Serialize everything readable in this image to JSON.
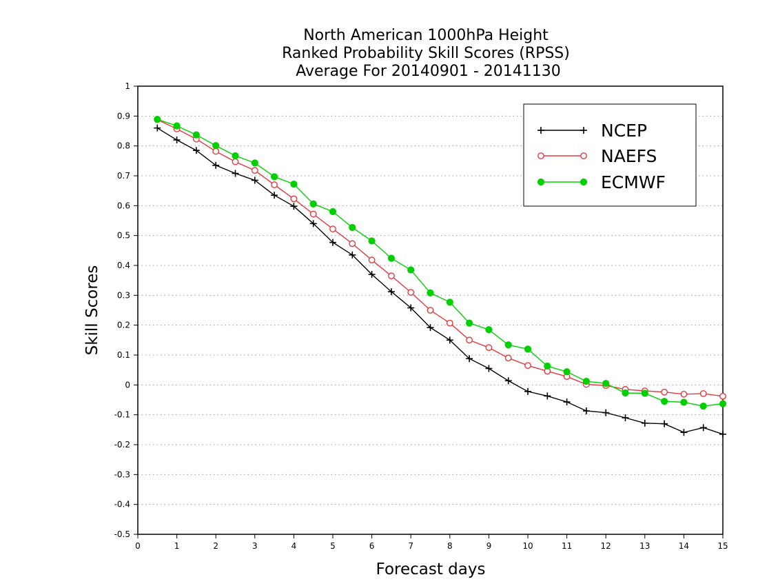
{
  "chart_data": {
    "type": "line",
    "title_lines": [
      "North American 1000hPa Height",
      "Ranked Probability Skill Scores (RPSS)",
      " Average For 20140901 - 20141130"
    ],
    "xlabel": "Forecast days",
    "ylabel": "Skill Scores",
    "xlim": [
      0,
      15
    ],
    "ylim": [
      -0.5,
      1
    ],
    "x_ticks": [
      0,
      1,
      2,
      3,
      4,
      5,
      6,
      7,
      8,
      9,
      10,
      11,
      12,
      13,
      14,
      15
    ],
    "x_tick_labels": [
      "0",
      "1",
      "2",
      "3",
      "4",
      "5",
      "6",
      "7",
      "8",
      "9",
      "10",
      "11",
      "12",
      "13",
      "14",
      "15"
    ],
    "y_ticks": [
      -0.5,
      -0.4,
      -0.3,
      -0.2,
      -0.1,
      0,
      0.1,
      0.2,
      0.3,
      0.4,
      0.5,
      0.6,
      0.7,
      0.8,
      0.9,
      1
    ],
    "y_tick_labels": [
      "-0.5",
      "-0.4",
      "-0.3",
      "-0.2",
      "-0.1",
      "0",
      "0.1",
      "0.2",
      "0.3",
      "0.4",
      "0.5",
      "0.6",
      "0.7",
      "0.8",
      "0.9",
      "1"
    ],
    "grid": "horizontal dotted",
    "legend_position": "top-right",
    "x": [
      0.5,
      1,
      1.5,
      2,
      2.5,
      3,
      3.5,
      4,
      4.5,
      5,
      5.5,
      6,
      6.5,
      7,
      7.5,
      8,
      8.5,
      9,
      9.5,
      10,
      10.5,
      11,
      11.5,
      12,
      12.5,
      13,
      13.5,
      14,
      14.5,
      15
    ],
    "series": [
      {
        "name": "NCEP",
        "color": "#000000",
        "marker": "plus",
        "values": [
          0.86,
          0.82,
          0.785,
          0.735,
          0.708,
          0.685,
          0.635,
          0.598,
          0.54,
          0.477,
          0.435,
          0.37,
          0.312,
          0.258,
          0.192,
          0.15,
          0.088,
          0.055,
          0.014,
          -0.022,
          -0.037,
          -0.057,
          -0.087,
          -0.093,
          -0.11,
          -0.128,
          -0.13,
          -0.159,
          -0.143,
          -0.165
        ]
      },
      {
        "name": "NAEFS",
        "color": "#e8383d",
        "marker": "open-circle",
        "values": [
          0.888,
          0.857,
          0.823,
          0.782,
          0.747,
          0.718,
          0.67,
          0.623,
          0.572,
          0.522,
          0.473,
          0.418,
          0.365,
          0.31,
          0.25,
          0.207,
          0.15,
          0.125,
          0.09,
          0.065,
          0.046,
          0.028,
          0.002,
          -0.002,
          -0.015,
          -0.02,
          -0.024,
          -0.031,
          -0.029,
          -0.038
        ]
      },
      {
        "name": "ECMWF",
        "color": "#00d000",
        "marker": "filled-circle",
        "values": [
          0.889,
          0.867,
          0.837,
          0.801,
          0.767,
          0.743,
          0.697,
          0.672,
          0.606,
          0.58,
          0.527,
          0.482,
          0.424,
          0.385,
          0.308,
          0.277,
          0.207,
          0.185,
          0.134,
          0.12,
          0.063,
          0.044,
          0.012,
          0.005,
          -0.027,
          -0.028,
          -0.055,
          -0.058,
          -0.071,
          -0.063
        ]
      }
    ]
  }
}
